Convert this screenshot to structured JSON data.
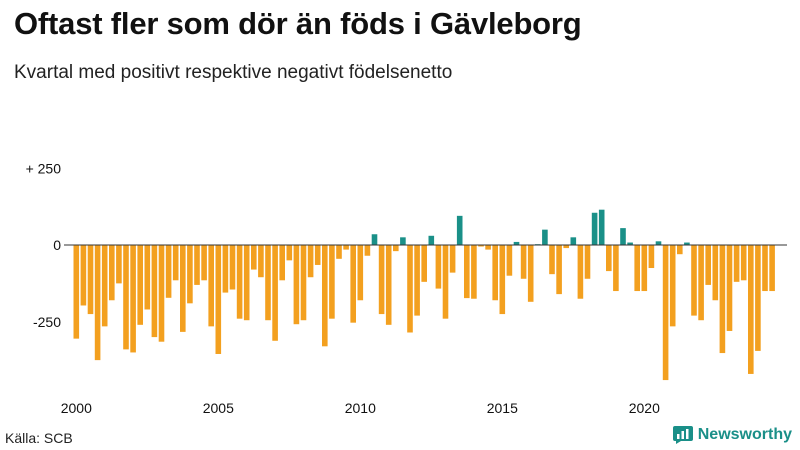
{
  "title": "Oftast fler som dör än föds i Gävleborg",
  "subtitle": "Kvartal med positivt respektive negativt födelsenetto",
  "source": "Källa: SCB",
  "brand": "Newsworthy",
  "brand_icon": "bar-chart-logo-icon",
  "colors": {
    "positive": "#1a9088",
    "negative": "#f3a01f",
    "zero_line": "#333333",
    "text": "#111111"
  },
  "chart_data": {
    "type": "bar",
    "title": "Oftast fler som dör än föds i Gävleborg",
    "subtitle": "Kvartal med positivt respektive negativt födelsenetto",
    "xlabel": "",
    "ylabel": "",
    "ylim": [
      -450,
      280
    ],
    "y_ticks": [
      {
        "value": 250,
        "label": "+ 250"
      },
      {
        "value": 0,
        "label": "0"
      },
      {
        "value": -250,
        "label": "-250"
      }
    ],
    "x_ticks": [
      {
        "year": 2000,
        "label": "2000"
      },
      {
        "year": 2005,
        "label": "2005"
      },
      {
        "year": 2010,
        "label": "2010"
      },
      {
        "year": 2015,
        "label": "2015"
      },
      {
        "year": 2020,
        "label": "2020"
      }
    ],
    "start_year": 2000,
    "start_quarter": 1,
    "categories": [
      "2000Q1",
      "2000Q2",
      "2000Q3",
      "2000Q4",
      "2001Q1",
      "2001Q2",
      "2001Q3",
      "2001Q4",
      "2002Q1",
      "2002Q2",
      "2002Q3",
      "2002Q4",
      "2003Q1",
      "2003Q2",
      "2003Q3",
      "2003Q4",
      "2004Q1",
      "2004Q2",
      "2004Q3",
      "2004Q4",
      "2005Q1",
      "2005Q2",
      "2005Q3",
      "2005Q4",
      "2006Q1",
      "2006Q2",
      "2006Q3",
      "2006Q4",
      "2007Q1",
      "2007Q2",
      "2007Q3",
      "2007Q4",
      "2008Q1",
      "2008Q2",
      "2008Q3",
      "2008Q4",
      "2009Q1",
      "2009Q2",
      "2009Q3",
      "2009Q4",
      "2010Q1",
      "2010Q2",
      "2010Q3",
      "2010Q4",
      "2011Q1",
      "2011Q2",
      "2011Q3",
      "2011Q4",
      "2012Q1",
      "2012Q2",
      "2012Q3",
      "2012Q4",
      "2013Q1",
      "2013Q2",
      "2013Q3",
      "2013Q4",
      "2014Q1",
      "2014Q2",
      "2014Q3",
      "2014Q4",
      "2015Q1",
      "2015Q2",
      "2015Q3",
      "2015Q4",
      "2016Q1",
      "2016Q2",
      "2016Q3",
      "2016Q4",
      "2017Q1",
      "2017Q2",
      "2017Q3",
      "2017Q4",
      "2018Q1",
      "2018Q2",
      "2018Q3",
      "2018Q4",
      "2019Q1",
      "2019Q2",
      "2019Q3",
      "2019Q4",
      "2020Q1",
      "2020Q2",
      "2020Q3",
      "2020Q4",
      "2021Q1",
      "2021Q2",
      "2021Q3",
      "2021Q4",
      "2022Q1",
      "2022Q2",
      "2022Q3",
      "2022Q4",
      "2023Q1",
      "2023Q2",
      "2023Q3",
      "2023Q4",
      "2024Q1",
      "2024Q2",
      "2024Q3"
    ],
    "values": [
      -305,
      -197,
      -225,
      -375,
      -265,
      -180,
      -125,
      -340,
      -350,
      -260,
      -210,
      -300,
      -315,
      -172,
      -115,
      -283,
      -190,
      -130,
      -115,
      -265,
      -355,
      -155,
      -145,
      -240,
      -245,
      -80,
      -105,
      -245,
      -312,
      -115,
      -50,
      -258,
      -245,
      -105,
      -65,
      -330,
      -240,
      -45,
      -15,
      -253,
      -180,
      -35,
      35,
      -225,
      -260,
      -20,
      25,
      -285,
      -230,
      -120,
      30,
      -142,
      -240,
      -90,
      95,
      -173,
      -175,
      -5,
      -15,
      -180,
      -225,
      -100,
      10,
      -110,
      -185,
      0,
      50,
      -95,
      -160,
      -10,
      25,
      -175,
      -110,
      105,
      115,
      -85,
      -150,
      55,
      8,
      -150,
      -150,
      -75,
      12,
      -440,
      -265,
      -30,
      8,
      -230,
      -245,
      -130,
      -180,
      -352,
      -280,
      -120,
      -115,
      -420,
      -345,
      -150,
      -150
    ]
  }
}
